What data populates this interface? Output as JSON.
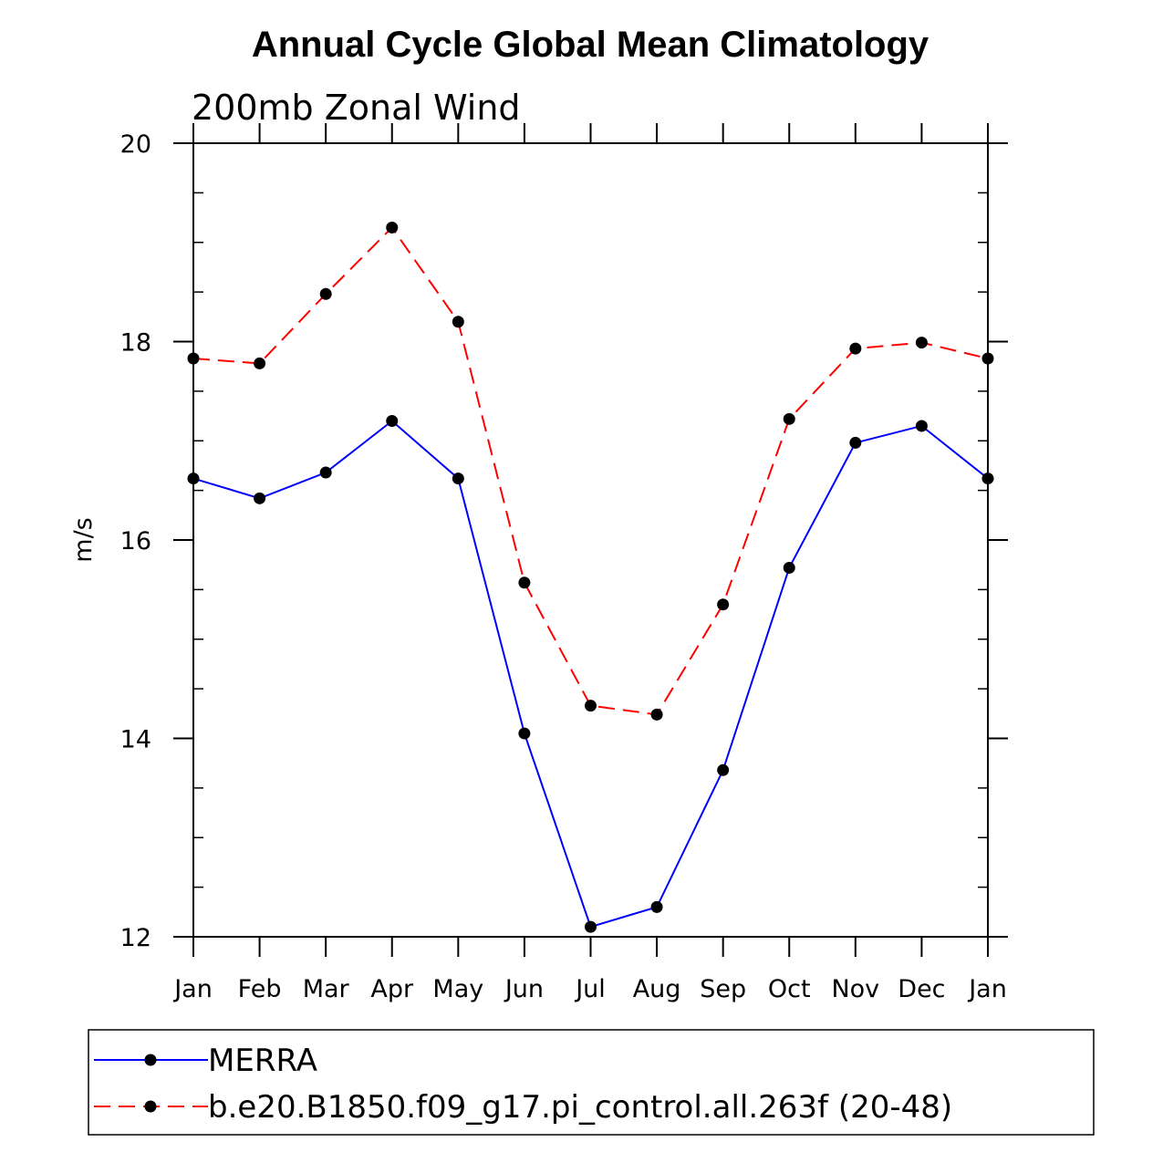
{
  "chart_data": {
    "type": "line",
    "title": "Annual Cycle Global Mean Climatology",
    "subtitle": "200mb Zonal Wind",
    "xlabel": "",
    "ylabel": "m/s",
    "ylim": [
      12,
      20
    ],
    "yticks": [
      "12",
      "14",
      "16",
      "18",
      "20"
    ],
    "categories": [
      "Jan",
      "Feb",
      "Mar",
      "Apr",
      "May",
      "Jun",
      "Jul",
      "Aug",
      "Sep",
      "Oct",
      "Nov",
      "Dec",
      "Jan"
    ],
    "series": [
      {
        "name": "MERRA",
        "color": "#0000ff",
        "dash": "solid",
        "values": [
          16.62,
          16.42,
          16.68,
          17.2,
          16.62,
          14.05,
          12.1,
          12.3,
          13.68,
          15.72,
          16.98,
          17.15,
          16.62
        ]
      },
      {
        "name": "b.e20.B1850.f09_g17.pi_control.all.263f (20-48)",
        "color": "#ff0000",
        "dash": "dashed",
        "values": [
          17.83,
          17.78,
          18.48,
          19.15,
          18.2,
          15.57,
          14.33,
          14.24,
          15.35,
          17.22,
          17.93,
          17.99,
          17.83
        ]
      }
    ],
    "grid": false,
    "legend_position": "bottom"
  }
}
